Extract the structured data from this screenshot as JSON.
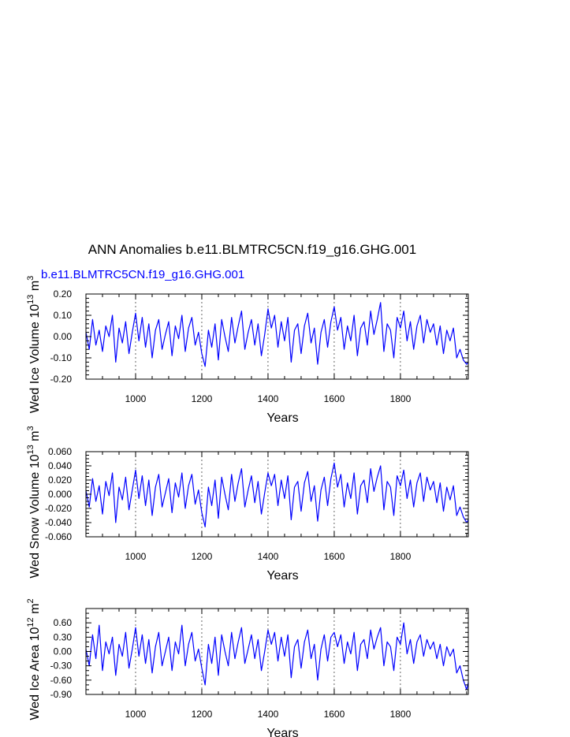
{
  "figure": {
    "title": "ANN Anomalies b.e11.BLMTRC5CN.f19_g16.GHG.001",
    "subtitle": "b.e11.BLMTRC5CN.f19_g16.GHG.001",
    "subtitle_color": "#0000ff",
    "line_color": "#0000ff"
  },
  "chart_data": [
    {
      "type": "line",
      "title": "",
      "xlabel": "Years",
      "ylabel_main": "Wed Ice Volume 10",
      "ylabel_exp": "13",
      "ylabel_unit": "m",
      "ylabel_unit_exp": "3",
      "xlim": [
        850,
        2005
      ],
      "ylim": [
        -0.2,
        0.2
      ],
      "x_major_ticks": [
        1000,
        1200,
        1400,
        1600,
        1800
      ],
      "x_tick_labels": [
        "1000",
        "1200",
        "1400",
        "1600",
        "1800"
      ],
      "y_major_ticks": [
        -0.2,
        -0.1,
        0.0,
        0.1,
        0.2
      ],
      "y_tick_labels": [
        "-0.20",
        "-0.10",
        "0.00",
        "0.10",
        "0.20"
      ],
      "y_minor_step": 0.02,
      "grid": "dashed vertical at major x ticks",
      "series": [
        {
          "x": [
            850,
            860,
            870,
            880,
            890,
            900,
            910,
            920,
            930,
            940,
            950,
            960,
            970,
            980,
            990,
            1000,
            1010,
            1020,
            1030,
            1040,
            1050,
            1060,
            1070,
            1080,
            1090,
            1100,
            1110,
            1120,
            1130,
            1140,
            1150,
            1160,
            1170,
            1180,
            1190,
            1200,
            1210,
            1220,
            1230,
            1240,
            1250,
            1260,
            1270,
            1280,
            1290,
            1300,
            1310,
            1320,
            1330,
            1340,
            1350,
            1360,
            1370,
            1380,
            1390,
            1400,
            1410,
            1420,
            1430,
            1440,
            1450,
            1460,
            1470,
            1480,
            1490,
            1500,
            1510,
            1520,
            1530,
            1540,
            1550,
            1560,
            1570,
            1580,
            1590,
            1600,
            1610,
            1620,
            1630,
            1640,
            1650,
            1660,
            1670,
            1680,
            1690,
            1700,
            1710,
            1720,
            1730,
            1740,
            1750,
            1760,
            1770,
            1780,
            1790,
            1800,
            1810,
            1820,
            1830,
            1840,
            1850,
            1860,
            1870,
            1880,
            1890,
            1900,
            1910,
            1920,
            1930,
            1940,
            1950,
            1960,
            1970,
            1980,
            1990,
            2000,
            2005
          ],
          "y": [
            0.02,
            -0.06,
            0.08,
            -0.04,
            0.03,
            -0.07,
            0.05,
            0.0,
            0.1,
            -0.12,
            0.04,
            -0.03,
            0.07,
            -0.08,
            0.02,
            0.11,
            -0.02,
            0.09,
            -0.05,
            0.06,
            -0.1,
            0.03,
            0.08,
            -0.06,
            0.01,
            0.07,
            -0.09,
            0.05,
            -0.01,
            0.1,
            -0.07,
            0.04,
            0.09,
            -0.04,
            0.02,
            -0.08,
            -0.14,
            0.03,
            -0.05,
            0.06,
            -0.11,
            0.08,
            0.0,
            -0.07,
            0.09,
            -0.03,
            0.05,
            0.12,
            -0.06,
            0.02,
            0.08,
            -0.04,
            0.06,
            -0.09,
            0.01,
            0.13,
            0.04,
            0.1,
            -0.05,
            0.07,
            -0.02,
            0.09,
            -0.12,
            0.03,
            0.06,
            -0.08,
            0.05,
            0.11,
            -0.03,
            0.04,
            -0.13,
            0.02,
            0.08,
            -0.05,
            0.07,
            0.14,
            0.03,
            0.09,
            -0.06,
            0.05,
            -0.02,
            0.1,
            -0.09,
            0.04,
            0.07,
            -0.04,
            0.12,
            0.01,
            0.08,
            0.16,
            -0.07,
            0.06,
            0.03,
            -0.1,
            0.09,
            0.04,
            0.12,
            -0.02,
            0.07,
            -0.06,
            0.05,
            0.1,
            -0.03,
            0.08,
            0.02,
            0.06,
            -0.04,
            0.05,
            -0.08,
            0.03,
            -0.02,
            0.04,
            -0.1,
            -0.06,
            -0.11,
            -0.13,
            -0.12
          ]
        }
      ]
    },
    {
      "type": "line",
      "title": "",
      "xlabel": "Years",
      "ylabel_main": "Wed Snow Volume 10",
      "ylabel_exp": "13",
      "ylabel_unit": "m",
      "ylabel_unit_exp": "3",
      "xlim": [
        850,
        2005
      ],
      "ylim": [
        -0.06,
        0.06
      ],
      "x_major_ticks": [
        1000,
        1200,
        1400,
        1600,
        1800
      ],
      "x_tick_labels": [
        "1000",
        "1200",
        "1400",
        "1600",
        "1800"
      ],
      "y_major_ticks": [
        -0.06,
        -0.04,
        -0.02,
        0.0,
        0.02,
        0.04,
        0.06
      ],
      "y_tick_labels": [
        "-0.060",
        "-0.040",
        "-0.020",
        "0.000",
        "0.020",
        "0.040",
        "0.060"
      ],
      "y_minor_step": 0.005,
      "grid": "dashed vertical at major x ticks",
      "series": [
        {
          "x": [
            850,
            860,
            870,
            880,
            890,
            900,
            910,
            920,
            930,
            940,
            950,
            960,
            970,
            980,
            990,
            1000,
            1010,
            1020,
            1030,
            1040,
            1050,
            1060,
            1070,
            1080,
            1090,
            1100,
            1110,
            1120,
            1130,
            1140,
            1150,
            1160,
            1170,
            1180,
            1190,
            1200,
            1210,
            1220,
            1230,
            1240,
            1250,
            1260,
            1270,
            1280,
            1290,
            1300,
            1310,
            1320,
            1330,
            1340,
            1350,
            1360,
            1370,
            1380,
            1390,
            1400,
            1410,
            1420,
            1430,
            1440,
            1450,
            1460,
            1470,
            1480,
            1490,
            1500,
            1510,
            1520,
            1530,
            1540,
            1550,
            1560,
            1570,
            1580,
            1590,
            1600,
            1610,
            1620,
            1630,
            1640,
            1650,
            1660,
            1670,
            1680,
            1690,
            1700,
            1710,
            1720,
            1730,
            1740,
            1750,
            1760,
            1770,
            1780,
            1790,
            1800,
            1810,
            1820,
            1830,
            1840,
            1850,
            1860,
            1870,
            1880,
            1890,
            1900,
            1910,
            1920,
            1930,
            1940,
            1950,
            1960,
            1970,
            1980,
            1990,
            2000,
            2005
          ],
          "y": [
            0.005,
            -0.018,
            0.022,
            -0.01,
            0.012,
            -0.028,
            0.018,
            -0.002,
            0.03,
            -0.04,
            0.01,
            -0.008,
            0.024,
            -0.022,
            0.006,
            0.034,
            -0.006,
            0.026,
            -0.016,
            0.02,
            -0.03,
            0.01,
            0.028,
            -0.018,
            0.002,
            0.022,
            -0.026,
            0.016,
            -0.004,
            0.03,
            -0.02,
            0.012,
            0.028,
            -0.014,
            0.006,
            -0.026,
            -0.046,
            0.01,
            -0.016,
            0.02,
            -0.034,
            0.024,
            0.0,
            -0.022,
            0.028,
            -0.01,
            0.016,
            0.036,
            -0.018,
            0.006,
            0.026,
            -0.012,
            0.018,
            -0.028,
            0.002,
            0.03,
            0.012,
            0.028,
            -0.016,
            0.02,
            -0.006,
            0.026,
            -0.036,
            0.01,
            0.018,
            -0.024,
            0.016,
            0.032,
            -0.01,
            0.012,
            -0.038,
            0.006,
            0.024,
            -0.016,
            0.022,
            0.044,
            0.01,
            0.028,
            -0.018,
            0.016,
            -0.006,
            0.03,
            -0.028,
            0.012,
            0.02,
            -0.012,
            0.036,
            0.004,
            0.024,
            0.04,
            -0.022,
            0.018,
            0.01,
            -0.03,
            0.026,
            0.012,
            0.034,
            -0.006,
            0.02,
            -0.018,
            0.016,
            0.03,
            -0.01,
            0.024,
            0.006,
            0.018,
            -0.012,
            0.016,
            -0.024,
            0.01,
            -0.008,
            0.012,
            -0.03,
            -0.018,
            -0.032,
            -0.04,
            -0.036
          ]
        }
      ]
    },
    {
      "type": "line",
      "title": "",
      "xlabel": "Years",
      "ylabel_main": "Wed Ice Area 10",
      "ylabel_exp": "12",
      "ylabel_unit": "m",
      "ylabel_unit_exp": "2",
      "xlim": [
        850,
        2005
      ],
      "ylim": [
        -0.9,
        0.9
      ],
      "x_major_ticks": [
        1000,
        1200,
        1400,
        1600,
        1800
      ],
      "x_tick_labels": [
        "1000",
        "1200",
        "1400",
        "1600",
        "1800"
      ],
      "y_major_ticks": [
        -0.9,
        -0.6,
        -0.3,
        0.0,
        0.3,
        0.6
      ],
      "y_tick_labels": [
        "-0.90",
        "-0.60",
        "-0.30",
        "0.00",
        "0.30",
        "0.60"
      ],
      "y_minor_step": 0.1,
      "grid": "dashed vertical at major x ticks",
      "series": [
        {
          "x": [
            850,
            860,
            870,
            880,
            890,
            900,
            910,
            920,
            930,
            940,
            950,
            960,
            970,
            980,
            990,
            1000,
            1010,
            1020,
            1030,
            1040,
            1050,
            1060,
            1070,
            1080,
            1090,
            1100,
            1110,
            1120,
            1130,
            1140,
            1150,
            1160,
            1170,
            1180,
            1190,
            1200,
            1210,
            1220,
            1230,
            1240,
            1250,
            1260,
            1270,
            1280,
            1290,
            1300,
            1310,
            1320,
            1330,
            1340,
            1350,
            1360,
            1370,
            1380,
            1390,
            1400,
            1410,
            1420,
            1430,
            1440,
            1450,
            1460,
            1470,
            1480,
            1490,
            1500,
            1510,
            1520,
            1530,
            1540,
            1550,
            1560,
            1570,
            1580,
            1590,
            1600,
            1610,
            1620,
            1630,
            1640,
            1650,
            1660,
            1670,
            1680,
            1690,
            1700,
            1710,
            1720,
            1730,
            1740,
            1750,
            1760,
            1770,
            1780,
            1790,
            1800,
            1810,
            1820,
            1830,
            1840,
            1850,
            1860,
            1870,
            1880,
            1890,
            1900,
            1910,
            1920,
            1930,
            1940,
            1950,
            1960,
            1970,
            1980,
            1990,
            2000,
            2005
          ],
          "y": [
            0.05,
            -0.3,
            0.35,
            -0.15,
            0.55,
            -0.4,
            0.2,
            -0.05,
            0.3,
            -0.5,
            0.15,
            -0.1,
            0.4,
            -0.35,
            0.05,
            0.5,
            -0.1,
            0.35,
            -0.25,
            0.25,
            -0.45,
            0.1,
            0.4,
            -0.3,
            0.0,
            0.3,
            -0.4,
            0.2,
            -0.05,
            0.55,
            -0.3,
            0.15,
            0.4,
            -0.2,
            0.05,
            -0.35,
            -0.7,
            0.15,
            -0.25,
            0.3,
            -0.5,
            0.35,
            0.0,
            -0.3,
            0.4,
            -0.15,
            0.2,
            0.5,
            -0.25,
            0.05,
            0.35,
            -0.15,
            0.25,
            -0.4,
            0.0,
            0.45,
            0.15,
            0.4,
            -0.2,
            0.3,
            -0.1,
            0.35,
            -0.55,
            0.1,
            0.25,
            -0.35,
            0.2,
            0.45,
            -0.15,
            0.15,
            -0.6,
            0.05,
            0.35,
            -0.2,
            0.3,
            0.4,
            0.1,
            0.35,
            -0.25,
            0.2,
            -0.05,
            0.4,
            -0.4,
            0.15,
            0.25,
            -0.15,
            0.45,
            0.05,
            0.3,
            0.5,
            -0.3,
            0.2,
            0.1,
            -0.4,
            0.3,
            0.15,
            0.6,
            -0.05,
            0.25,
            -0.25,
            0.2,
            0.35,
            -0.1,
            0.25,
            0.05,
            0.2,
            -0.15,
            0.15,
            -0.3,
            0.1,
            -0.1,
            0.05,
            -0.45,
            -0.3,
            -0.6,
            -0.8,
            -0.65
          ]
        }
      ]
    }
  ]
}
